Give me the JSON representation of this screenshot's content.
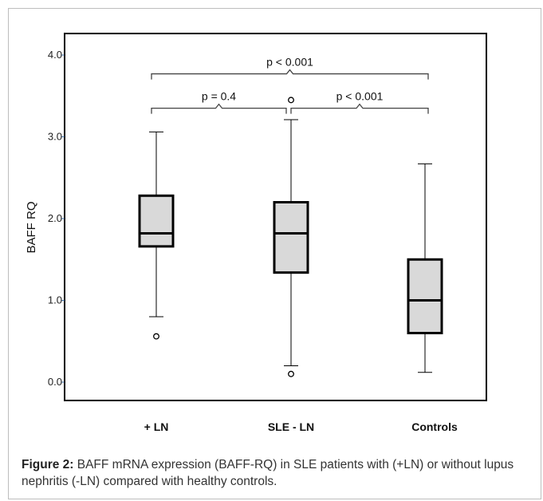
{
  "chart_data": {
    "type": "box",
    "ylabel": "BAFF  RQ",
    "ylim": [
      0,
      4.0
    ],
    "yticks": [
      "0.0",
      "1.0",
      "2.0",
      "3.0",
      "4.0"
    ],
    "ytick_values": [
      0,
      1,
      2,
      3,
      4
    ],
    "categories": [
      "+ LN",
      "SLE -  LN",
      "Controls"
    ],
    "boxes": [
      {
        "category": "+ LN",
        "whisker_low": 0.8,
        "q1": 1.66,
        "median": 1.82,
        "q3": 2.28,
        "whisker_high": 3.06,
        "outliers": [
          0.56
        ]
      },
      {
        "category": "SLE -  LN",
        "whisker_low": 0.2,
        "q1": 1.34,
        "median": 1.82,
        "q3": 2.2,
        "whisker_high": 3.21,
        "outliers": [
          0.1,
          3.45
        ]
      },
      {
        "category": "Controls",
        "whisker_low": 0.12,
        "q1": 0.6,
        "median": 1.0,
        "q3": 1.5,
        "whisker_high": 2.67,
        "outliers": []
      }
    ],
    "annotations": [
      {
        "text": "p < 0.001",
        "from": 0,
        "to": 2,
        "y": 3.77
      },
      {
        "text": "p = 0.4",
        "from": 0,
        "to": 1,
        "y": 3.35
      },
      {
        "text": "p < 0.001",
        "from": 1,
        "to": 2,
        "y": 3.35
      }
    ],
    "box_fill": "#d9d9d9",
    "line_color": "#000000",
    "annotation_color": "#444444"
  },
  "caption": {
    "label": "Figure 2:",
    "text": " BAFF mRNA expression (BAFF-RQ) in SLE patients with (+LN) or without lupus nephritis (-LN) compared with healthy controls."
  }
}
